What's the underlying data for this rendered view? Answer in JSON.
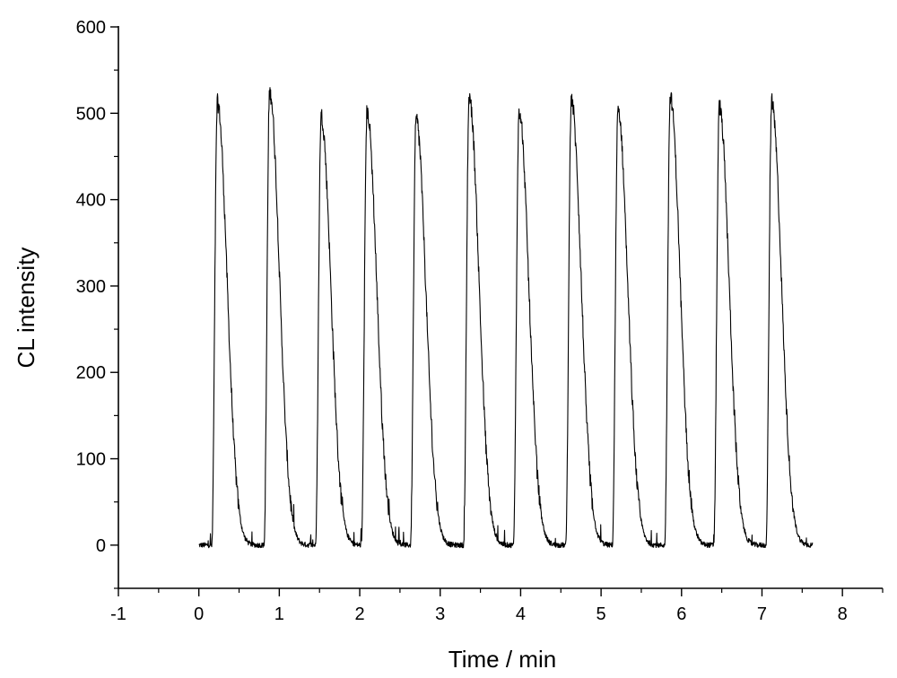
{
  "chart_data": {
    "type": "line",
    "title": "",
    "xlabel": "Time / min",
    "ylabel": "CL intensity",
    "xlim": [
      -1,
      8.5
    ],
    "ylim": [
      -50,
      600
    ],
    "xticks": [
      -1,
      0,
      1,
      2,
      3,
      4,
      5,
      6,
      7,
      8
    ],
    "xtick_labels": [
      "-1",
      "0",
      "1",
      "2",
      "3",
      "4",
      "5",
      "6",
      "7",
      "8"
    ],
    "yticks": [
      0,
      100,
      200,
      300,
      400,
      500,
      600
    ],
    "ytick_labels": [
      "0",
      "100",
      "200",
      "300",
      "400",
      "500",
      "600"
    ],
    "grid": false,
    "legend": "none",
    "line_color": "#000000",
    "series": [
      {
        "start_x": 0.0,
        "end_x": 7.63,
        "baseline": 0,
        "peaks": [
          {
            "x": 0.23,
            "y": 512
          },
          {
            "x": 0.88,
            "y": 526
          },
          {
            "x": 1.52,
            "y": 497
          },
          {
            "x": 2.09,
            "y": 501
          },
          {
            "x": 2.7,
            "y": 494
          },
          {
            "x": 3.36,
            "y": 519
          },
          {
            "x": 3.98,
            "y": 503
          },
          {
            "x": 4.63,
            "y": 515
          },
          {
            "x": 5.21,
            "y": 503
          },
          {
            "x": 5.86,
            "y": 519
          },
          {
            "x": 6.47,
            "y": 508
          },
          {
            "x": 7.12,
            "y": 512
          }
        ]
      }
    ]
  }
}
